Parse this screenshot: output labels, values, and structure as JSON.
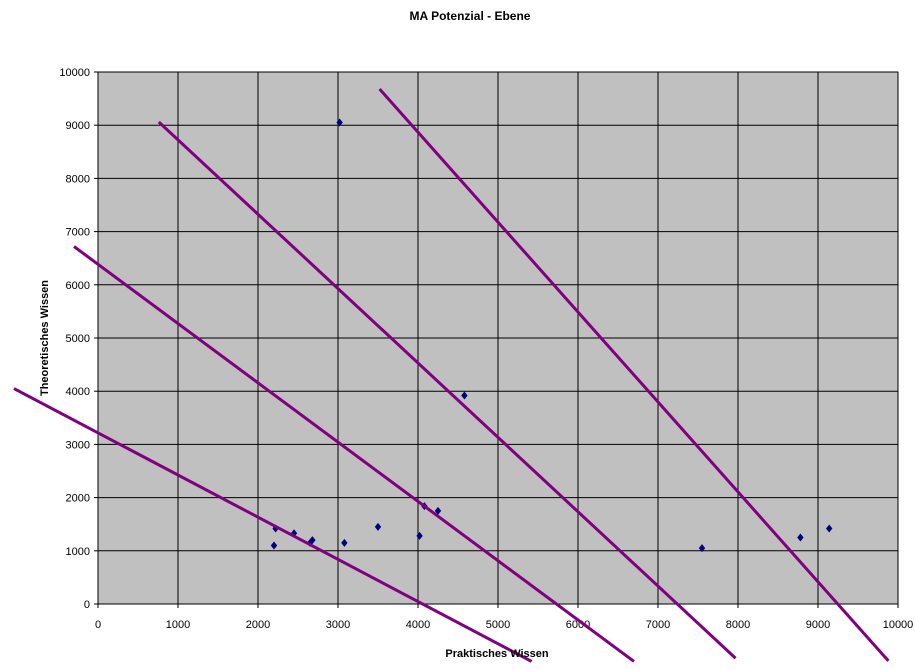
{
  "chart_data": {
    "type": "scatter",
    "title": "MA Potenzial - Ebene",
    "xlabel": "Praktisches Wissen",
    "ylabel": "Theoretisches Wissen",
    "xlim": [
      0,
      10000
    ],
    "ylim": [
      0,
      10000
    ],
    "xticks": [
      0,
      1000,
      2000,
      3000,
      4000,
      5000,
      6000,
      7000,
      8000,
      9000,
      10000
    ],
    "yticks": [
      0,
      1000,
      2000,
      3000,
      4000,
      5000,
      6000,
      7000,
      8000,
      9000,
      10000
    ],
    "grid": true,
    "plot_background": "#c0c0c0",
    "series": [
      {
        "marker": "diamond",
        "color": "#000080",
        "points": [
          {
            "x": 2200,
            "y": 1100
          },
          {
            "x": 2220,
            "y": 1420
          },
          {
            "x": 2450,
            "y": 1330
          },
          {
            "x": 2650,
            "y": 1150
          },
          {
            "x": 2680,
            "y": 1200
          },
          {
            "x": 3020,
            "y": 9050
          },
          {
            "x": 3080,
            "y": 1150
          },
          {
            "x": 3500,
            "y": 1450
          },
          {
            "x": 4020,
            "y": 1280
          },
          {
            "x": 4080,
            "y": 1840
          },
          {
            "x": 4250,
            "y": 1750
          },
          {
            "x": 4580,
            "y": 3920
          },
          {
            "x": 7550,
            "y": 1050
          },
          {
            "x": 8780,
            "y": 1250
          },
          {
            "x": 9140,
            "y": 1420
          }
        ]
      }
    ],
    "lines": {
      "color": "#800080",
      "segments": [
        {
          "x1": -1050,
          "y1": 4050,
          "x2": 5420,
          "y2": -1080
        },
        {
          "x1": -300,
          "y1": 6720,
          "x2": 6700,
          "y2": -1080
        },
        {
          "x1": 760,
          "y1": 9060,
          "x2": 7970,
          "y2": -1020
        },
        {
          "x1": 3520,
          "y1": 9680,
          "x2": 9880,
          "y2": -1070
        }
      ]
    }
  }
}
